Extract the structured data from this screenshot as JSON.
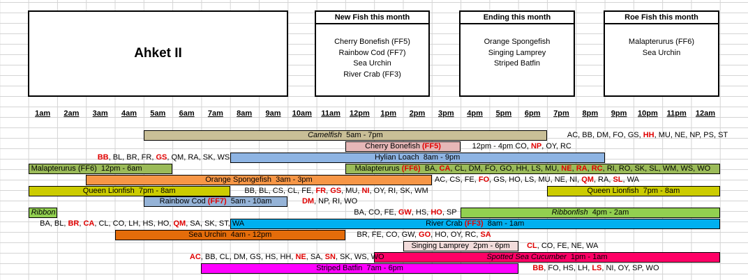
{
  "title": "Ahket II",
  "new_fish": {
    "header": "New Fish this month",
    "items": [
      "Cherry Bonefish (FF5)",
      "Rainbow Cod (FF7)",
      "Sea Urchin",
      "River Crab (FF3)"
    ]
  },
  "ending": {
    "header": "Ending this month",
    "items": [
      "Orange Spongefish",
      "Singing Lamprey",
      "Striped Batfin"
    ]
  },
  "roe": {
    "header": "Roe Fish this month",
    "items": [
      "Malapterurus (FF6)",
      "Sea Urchin"
    ]
  },
  "hours": [
    "1am",
    "2am",
    "3am",
    "4am",
    "5am",
    "6am",
    "7am",
    "8am",
    "9am",
    "10am",
    "11am",
    "12pm",
    "1pm",
    "2pm",
    "3pm",
    "4pm",
    "5pm",
    "6pm",
    "7pm",
    "8pm",
    "9pm",
    "10pm",
    "11pm",
    "12am"
  ],
  "colors": {
    "camelfish": "#c9bf97",
    "cherry": "#e6b7b7",
    "hylian": "#8eb4e3",
    "malapterurus": "#9bbb59",
    "orange": "#f79646",
    "queen": "#cccc00",
    "rainbow": "#95b3d7",
    "ribbon": "#92d050",
    "rivercrab": "#00b0f0",
    "seaurchin": "#e46c0a",
    "lamprey": "#f2dcdb",
    "cucumber": "#ff0066",
    "batfin": "#ff00ff"
  },
  "rows": [
    {
      "bars": [
        {
          "name": "Camelfish",
          "time": "5am - 7pm",
          "italic_name": true
        }
      ],
      "texts": [
        {
          "parts": [
            {
              "t": "AC, BB, DM, FO, GS, "
            },
            {
              "t": "HH",
              "r": true
            },
            {
              "t": ", MU, NE, NP, PS, ST"
            }
          ]
        }
      ]
    },
    {
      "bars": [
        {
          "name": "Cherry Bonefish ",
          "tag": "(FF5)"
        }
      ],
      "texts": [
        {
          "parts": [
            {
              "t": "12pm - 4pm  CO, "
            },
            {
              "t": "NP",
              "r": true
            },
            {
              "t": ", OY, RC"
            }
          ]
        }
      ]
    },
    {
      "bars": [
        {
          "name": "Hylian Loach",
          "time": "8am - 9pm"
        }
      ],
      "texts": [
        {
          "parts": [
            {
              "t": "BB",
              "r": true
            },
            {
              "t": ", BL, BR, FR, "
            },
            {
              "t": "GS",
              "r": true
            },
            {
              "t": ", QM, RA, SK, WS"
            }
          ]
        }
      ]
    },
    {
      "bars": [
        {
          "name": "Malapterurus (FF6)",
          "time": "12pm - 6am",
          "left": true
        },
        {
          "name": "Malapterurus ",
          "tag": "(FF6)",
          "codes": [
            {
              "t": "  BA, "
            },
            {
              "t": "CA",
              "r": true
            },
            {
              "t": ", CL, DM, FO, GO, HH, LS, MU, "
            },
            {
              "t": "NE",
              "r": true
            },
            {
              "t": ", "
            },
            {
              "t": "RA",
              "r": true
            },
            {
              "t": ", "
            },
            {
              "t": "RC",
              "r": true
            },
            {
              "t": ", RI, RO, SK, SL, WM, WS, WO"
            }
          ]
        }
      ]
    },
    {
      "bars": [
        {
          "name": "Orange Spongefish",
          "time": "3am - 3pm"
        }
      ],
      "texts": [
        {
          "parts": [
            {
              "t": "AC, CS, FE, "
            },
            {
              "t": "FO",
              "r": true
            },
            {
              "t": ", GS, HO, LS, MU, NE, NI, "
            },
            {
              "t": "QM",
              "r": true
            },
            {
              "t": ", RA, "
            },
            {
              "t": "SL",
              "r": true
            },
            {
              "t": ", WA"
            }
          ]
        }
      ]
    },
    {
      "bars": [
        {
          "name": "Queen Lionfish",
          "time": "7pm - 8am"
        },
        {
          "name": "Queen Lionfish",
          "time": "7pm - 8am"
        }
      ],
      "texts": [
        {
          "parts": [
            {
              "t": "BB, BL, CS, CL, FE, "
            },
            {
              "t": "FR",
              "r": true
            },
            {
              "t": ", "
            },
            {
              "t": "GS",
              "r": true
            },
            {
              "t": ", MU, "
            },
            {
              "t": "NI",
              "r": true
            },
            {
              "t": ", OY, RI, SK, WM"
            }
          ]
        }
      ]
    },
    {
      "bars": [
        {
          "name": "Rainbow Cod ",
          "tag": "(FF7)",
          "time": "5am - 10am"
        }
      ],
      "texts": [
        {
          "parts": [
            {
              "t": "DM",
              "r": true
            },
            {
              "t": ", NP, RI, WO"
            }
          ]
        }
      ]
    },
    {
      "bars": [
        {
          "name": "Ribbon",
          "italic_name": true,
          "left": true
        },
        {
          "name": "Ribbonfish",
          "time": "4pm - 2am",
          "italic_name": true
        }
      ],
      "texts": [
        {
          "parts": [
            {
              "t": "BA, CO, FE, "
            },
            {
              "t": "GW",
              "r": true
            },
            {
              "t": ", HS, "
            },
            {
              "t": "HO",
              "r": true
            },
            {
              "t": ", SP"
            }
          ]
        }
      ]
    },
    {
      "bars": [
        {
          "name": "River Crab ",
          "tag": "(FF3)",
          "time": "8am - 1am"
        }
      ],
      "texts": [
        {
          "parts": [
            {
              "t": "BA, BL, "
            },
            {
              "t": "BR",
              "r": true
            },
            {
              "t": ", "
            },
            {
              "t": "CA",
              "r": true
            },
            {
              "t": ", CL, CO, LH, HS, HO, "
            },
            {
              "t": "QM",
              "r": true
            },
            {
              "t": ", SA, SK, ST, WA"
            }
          ]
        }
      ]
    },
    {
      "bars": [
        {
          "name": "Sea Urchin",
          "time": "4am - 12pm"
        }
      ],
      "texts": [
        {
          "parts": [
            {
              "t": "BR, FE, CO, GW, "
            },
            {
              "t": "GO",
              "r": true
            },
            {
              "t": ", HO, OY, RC, "
            },
            {
              "t": "SA",
              "r": true
            }
          ]
        }
      ]
    },
    {
      "bars": [
        {
          "name": "Singing Lamprey",
          "time": "2pm - 6pm"
        }
      ],
      "texts": [
        {
          "parts": [
            {
              "t": "CL",
              "r": true
            },
            {
              "t": ", CO, FE, NE, WA"
            }
          ]
        }
      ]
    },
    {
      "bars": [
        {
          "name": "Spotted Sea Cucumber",
          "time": "1pm - 1am",
          "italic_name": true
        }
      ],
      "texts": [
        {
          "parts": [
            {
              "t": "AC",
              "r": true
            },
            {
              "t": ", BB, CL, DM, GS, HS, HH, "
            },
            {
              "t": "NE",
              "r": true
            },
            {
              "t": ", SA, "
            },
            {
              "t": "SN",
              "r": true
            },
            {
              "t": ", SK, WS, WO"
            }
          ]
        }
      ]
    },
    {
      "bars": [
        {
          "name": "Striped Batfin",
          "time": "7am - 6pm"
        }
      ],
      "texts": [
        {
          "parts": [
            {
              "t": "BB",
              "r": true
            },
            {
              "t": ", FO, HS, LH, "
            },
            {
              "t": "LS",
              "r": true
            },
            {
              "t": ", NI, OY, SP, WO"
            }
          ]
        }
      ]
    }
  ]
}
